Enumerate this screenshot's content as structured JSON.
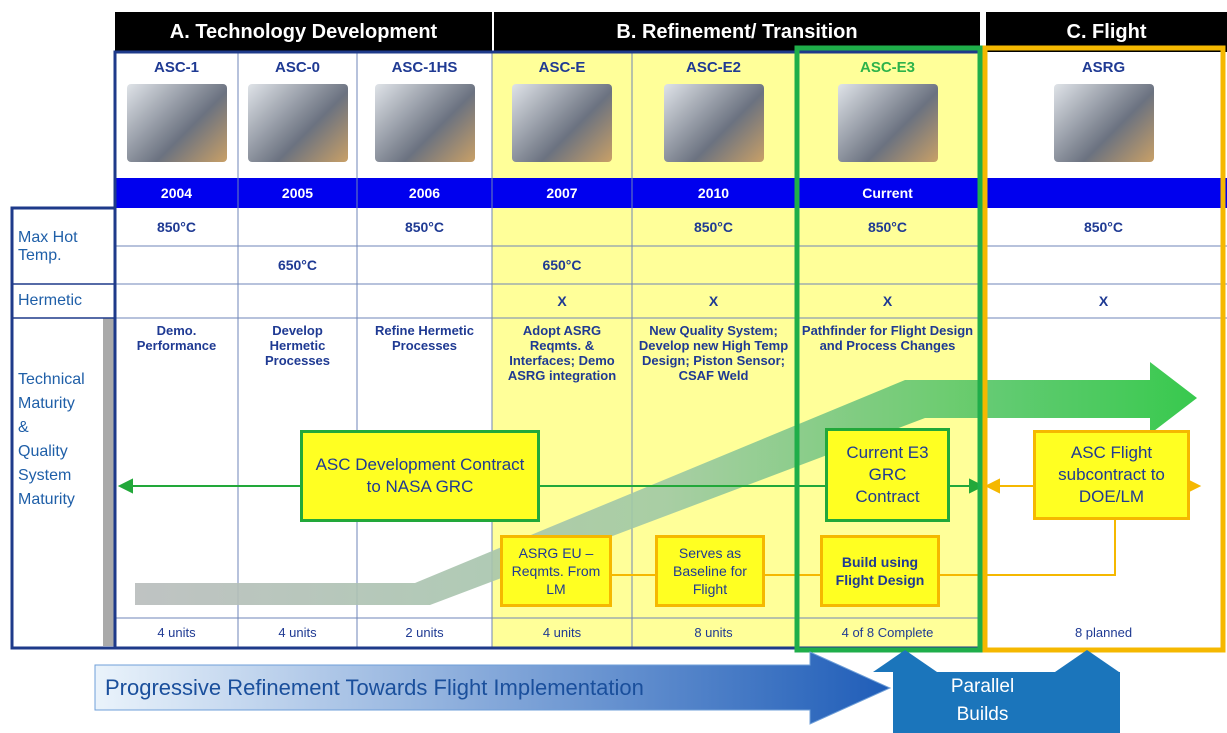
{
  "sections": [
    {
      "title": "A. Technology Development"
    },
    {
      "title": "B. Refinement/ Transition"
    },
    {
      "title": "C. Flight"
    }
  ],
  "row_labels": {
    "temperature": "Max Hot Temp.",
    "hermetic": "Hermetic",
    "maturity": "Technical Maturity & Quality System Maturity"
  },
  "columns": [
    {
      "name": "ASC-1",
      "year": "2004",
      "temp_high": "850°C",
      "maturity": "Demo. Performance",
      "units": "4 units"
    },
    {
      "name": "ASC-0",
      "year": "2005",
      "temp_low": "650°C",
      "maturity": "Develop Hermetic Processes",
      "units": "4 units"
    },
    {
      "name": "ASC-1HS",
      "year": "2006",
      "temp_high": "850°C",
      "maturity": "Refine Hermetic Processes",
      "units": "2 units"
    },
    {
      "name": "ASC-E",
      "year": "2007",
      "temp_low": "650°C",
      "hermetic": "X",
      "maturity": "Adopt ASRG Reqmts. & Interfaces; Demo ASRG integration",
      "units": "4 units"
    },
    {
      "name": "ASC-E2",
      "year": "2010",
      "temp_high": "850°C",
      "hermetic": "X",
      "maturity": "New Quality System; Develop new High Temp Design; Piston Sensor; CSAF Weld",
      "units": "8 units"
    },
    {
      "name": "ASC-E3",
      "year": "Current",
      "temp_high": "850°C",
      "hermetic": "X",
      "maturity": "Pathfinder for Flight Design and Process Changes",
      "units": "4 of 8 Complete"
    },
    {
      "name": "ASRG",
      "temp_high": "850°C",
      "hermetic": "X",
      "units": "8 planned"
    }
  ],
  "contracts": [
    {
      "label": "ASC Development Contract to NASA GRC"
    },
    {
      "label": "Current E3 GRC Contract"
    },
    {
      "label": "ASC Flight subcontract to DOE/LM"
    }
  ],
  "builds": [
    {
      "label": "ASRG EU – Reqmts. From LM"
    },
    {
      "label": "Serves as Baseline for Flight"
    },
    {
      "label": "Build using Flight Design"
    }
  ],
  "progress_arrow": "Progressive Refinement Towards Flight Implementation",
  "parallel_builds": "Parallel Builds"
}
